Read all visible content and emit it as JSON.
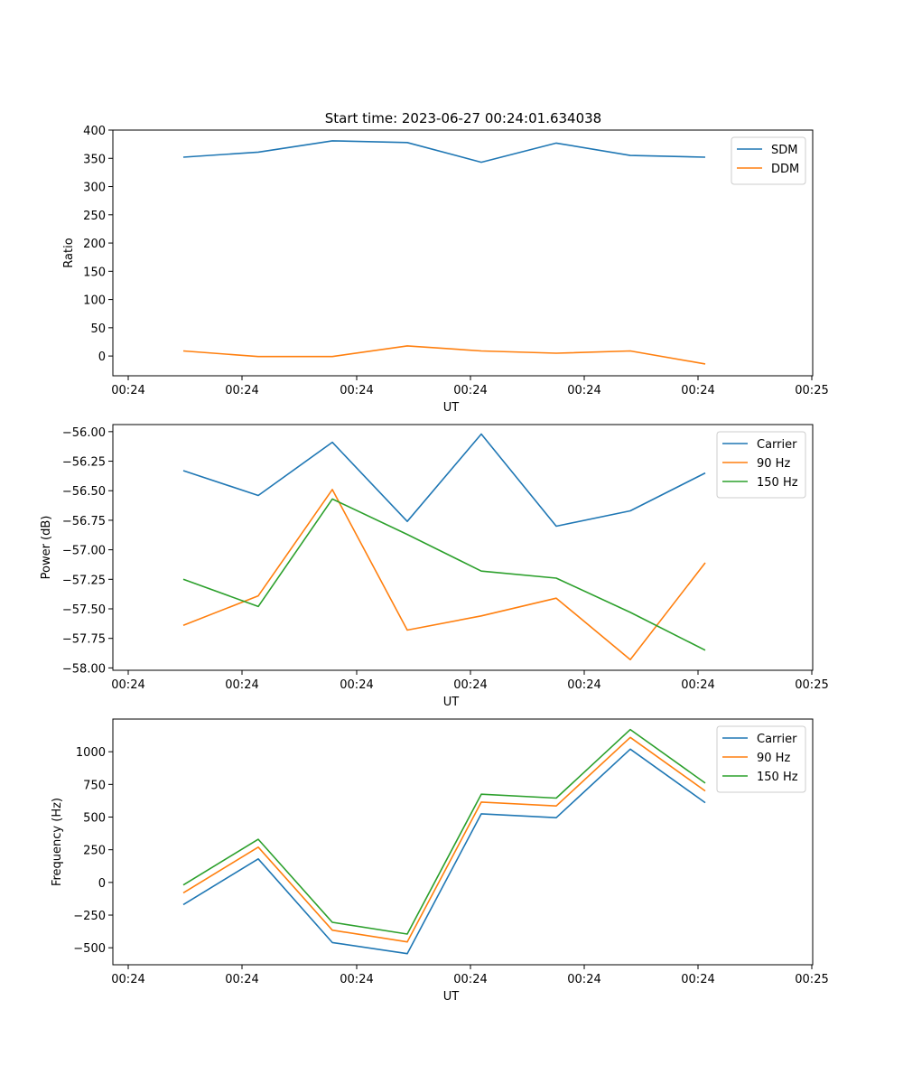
{
  "figure": {
    "title": "Start time: 2023-06-27 00:24:01.634038"
  },
  "chart_data": [
    {
      "type": "line",
      "title": "Start time: 2023-06-27 00:24:01.634038",
      "xlabel": "UT",
      "ylabel": "Ratio",
      "x_tick_labels": [
        "00:24",
        "00:24",
        "00:24",
        "00:24",
        "00:24",
        "00:24",
        "00:24",
        "00:25"
      ],
      "ylim": [
        -35,
        400
      ],
      "y_ticks": [
        0,
        50,
        100,
        150,
        200,
        250,
        300,
        350,
        400
      ],
      "legend": "top-right",
      "series": [
        {
          "name": "SDM",
          "color": "#1f77b4",
          "values": [
            352,
            361,
            381,
            378,
            343,
            377,
            355,
            352
          ]
        },
        {
          "name": "DDM",
          "color": "#ff7f0e",
          "values": [
            9,
            -1,
            -1,
            18,
            9,
            5,
            9,
            -14
          ]
        }
      ]
    },
    {
      "type": "line",
      "xlabel": "UT",
      "ylabel": "Power (dB)",
      "x_tick_labels": [
        "00:24",
        "00:24",
        "00:24",
        "00:24",
        "00:24",
        "00:24",
        "00:24",
        "00:25"
      ],
      "ylim": [
        -58.02,
        -55.94
      ],
      "y_ticks": [
        -58.0,
        -57.75,
        -57.5,
        -57.25,
        -57.0,
        -56.75,
        -56.5,
        -56.25,
        -56.0
      ],
      "y_tick_labels": [
        "−58.00",
        "−57.75",
        "−57.50",
        "−57.25",
        "−57.00",
        "−56.75",
        "−56.50",
        "−56.25",
        "−56.00"
      ],
      "legend": "top-right",
      "series": [
        {
          "name": "Carrier",
          "color": "#1f77b4",
          "values": [
            -56.33,
            -56.54,
            -56.09,
            -56.76,
            -56.02,
            -56.8,
            -56.67,
            -56.35
          ]
        },
        {
          "name": "90 Hz",
          "color": "#ff7f0e",
          "values": [
            -57.64,
            -57.39,
            -56.49,
            -57.68,
            -57.56,
            -57.41,
            -57.93,
            -57.11
          ]
        },
        {
          "name": "150 Hz",
          "color": "#2ca02c",
          "values": [
            -57.25,
            -57.48,
            -56.57,
            -56.87,
            -57.18,
            -57.24,
            -57.53,
            -57.85
          ]
        }
      ]
    },
    {
      "type": "line",
      "xlabel": "UT",
      "ylabel": "Frequency (Hz)",
      "x_tick_labels": [
        "00:24",
        "00:24",
        "00:24",
        "00:24",
        "00:24",
        "00:24",
        "00:24",
        "00:25"
      ],
      "ylim": [
        -630,
        1250
      ],
      "y_ticks": [
        -500,
        -250,
        0,
        250,
        500,
        750,
        1000
      ],
      "y_tick_labels": [
        "−500",
        "−250",
        "0",
        "250",
        "500",
        "750",
        "1000"
      ],
      "legend": "top-right",
      "series": [
        {
          "name": "Carrier",
          "color": "#1f77b4",
          "values": [
            -170,
            180,
            -460,
            -545,
            525,
            495,
            1020,
            610
          ]
        },
        {
          "name": "90 Hz",
          "color": "#ff7f0e",
          "values": [
            -80,
            270,
            -365,
            -455,
            615,
            585,
            1110,
            700
          ]
        },
        {
          "name": "150 Hz",
          "color": "#2ca02c",
          "values": [
            -20,
            330,
            -305,
            -395,
            675,
            645,
            1170,
            760
          ]
        }
      ]
    }
  ]
}
